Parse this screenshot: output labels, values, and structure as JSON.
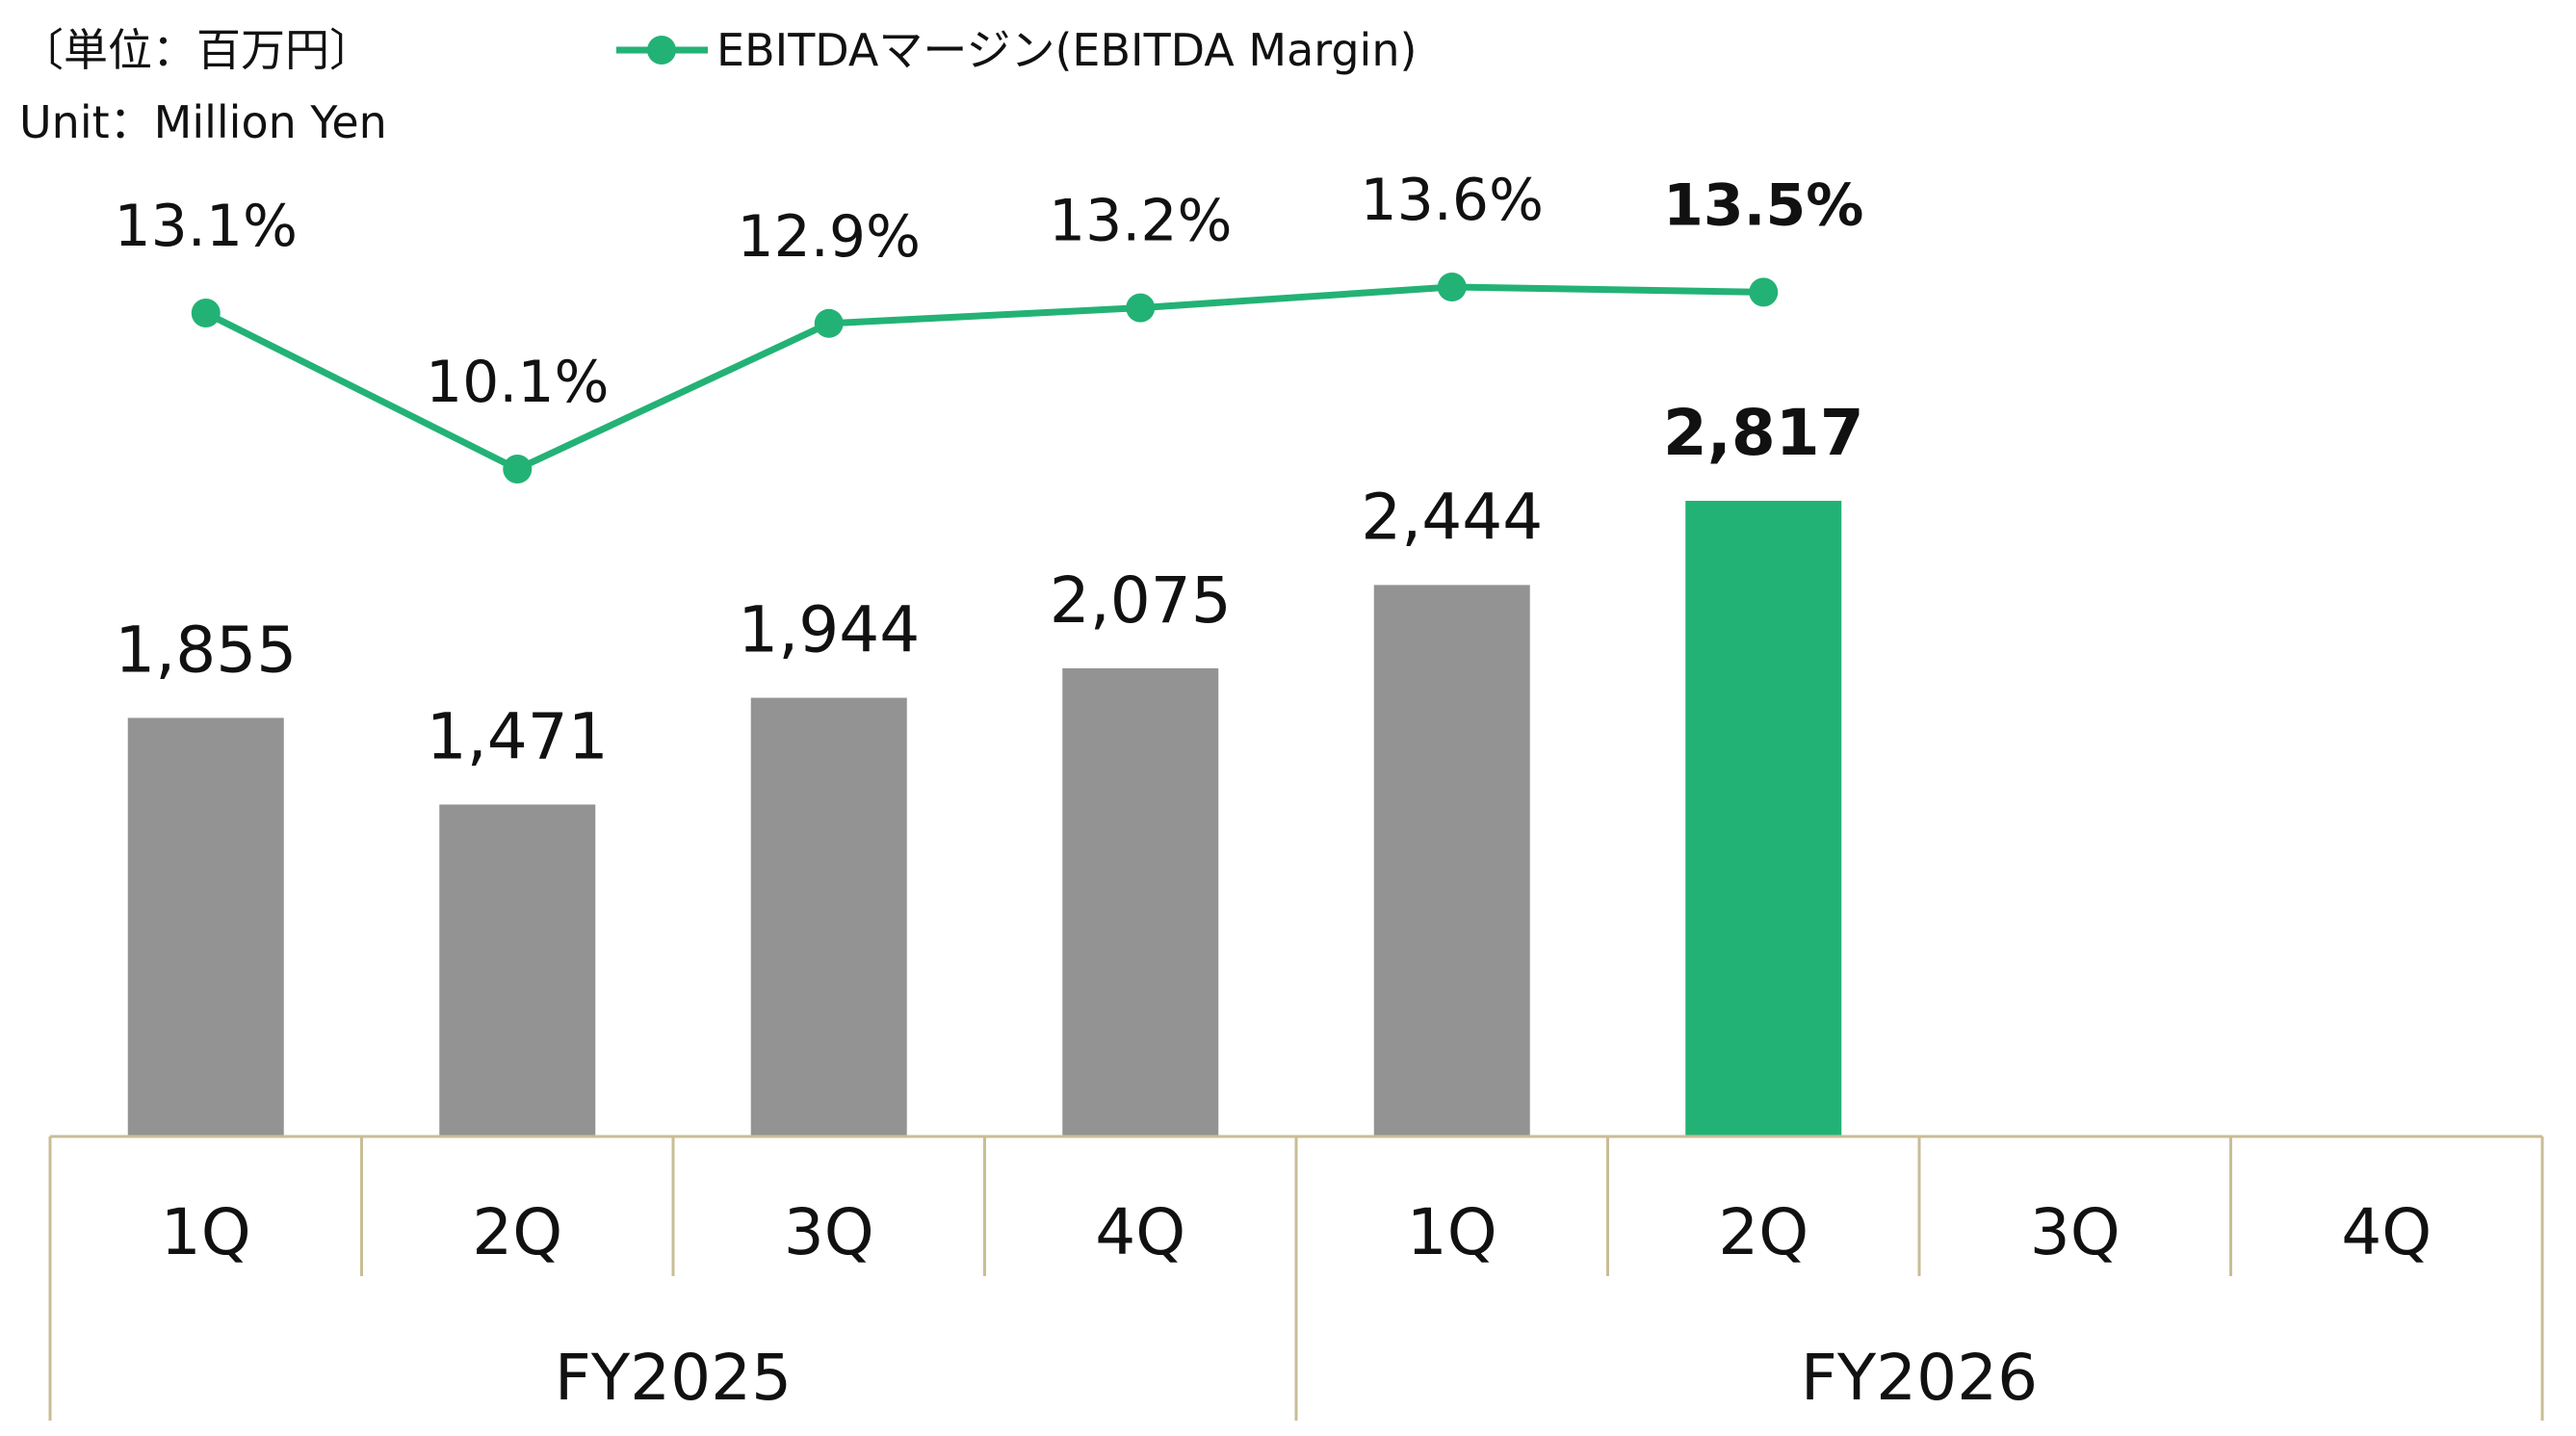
{
  "unit": {
    "jp": "〔単位：百万円〕",
    "en": "Unit：Million Yen"
  },
  "legend": {
    "line_label": "EBITDAマージン(EBITDA Margin)"
  },
  "colors": {
    "bar_past": "#939393",
    "bar_current": "#23b275",
    "line": "#23b275",
    "axis": "#c9bd96",
    "text": "#111111"
  },
  "chart_data": {
    "type": "bar",
    "categories": [
      "1Q",
      "2Q",
      "3Q",
      "4Q",
      "1Q",
      "2Q",
      "3Q",
      "4Q"
    ],
    "groups": [
      {
        "label": "FY2025",
        "span": 4
      },
      {
        "label": "FY2026",
        "span": 4
      }
    ],
    "series": [
      {
        "type": "bar",
        "values": [
          1855,
          1471,
          1944,
          2075,
          2444,
          2817,
          null,
          null
        ],
        "labels": [
          "1,855",
          "1,471",
          "1,944",
          "2,075",
          "2,444",
          "2,817",
          "",
          ""
        ],
        "highlight_index": 5
      },
      {
        "name": "EBITDAマージン(EBITDA Margin)",
        "type": "line",
        "values": [
          13.1,
          10.1,
          12.9,
          13.2,
          13.6,
          13.5,
          null,
          null
        ],
        "labels": [
          "13.1%",
          "10.1%",
          "12.9%",
          "13.2%",
          "13.6%",
          "13.5%",
          "",
          ""
        ],
        "highlight_index": 5
      }
    ],
    "bar_ylim": [
      0,
      3400
    ],
    "line_ylim": [
      4,
      16
    ]
  }
}
